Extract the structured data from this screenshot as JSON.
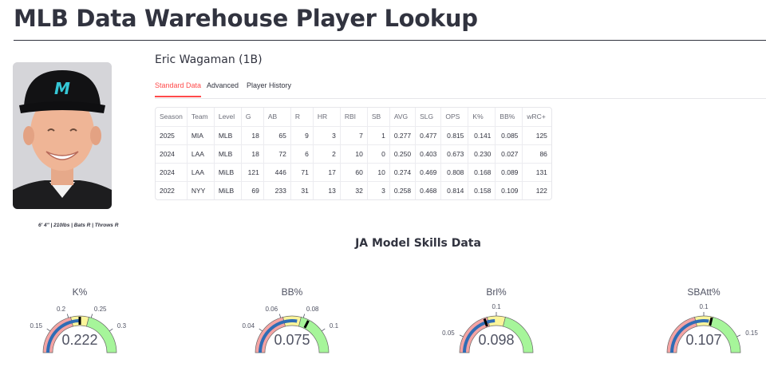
{
  "page": {
    "title": "MLB Data Warehouse Player Lookup"
  },
  "player": {
    "name": "Eric Wagaman (1B)",
    "bio": "6' 4\" | 210lbs | Bats R | Throws R",
    "photo_icon": "player-headshot"
  },
  "tabs": [
    {
      "label": "Standard Data",
      "active": true
    },
    {
      "label": "Advanced",
      "active": false
    },
    {
      "label": "Player History",
      "active": false
    }
  ],
  "table": {
    "columns": [
      "Season",
      "Team",
      "Level",
      "G",
      "AB",
      "R",
      "HR",
      "RBI",
      "SB",
      "AVG",
      "SLG",
      "OPS",
      "K%",
      "BB%",
      "wRC+"
    ],
    "rows": [
      [
        "2025",
        "MIA",
        "MLB",
        "18",
        "65",
        "9",
        "3",
        "7",
        "1",
        "0.277",
        "0.477",
        "0.815",
        "0.141",
        "0.085",
        "125"
      ],
      [
        "2024",
        "LAA",
        "MLB",
        "18",
        "72",
        "6",
        "2",
        "10",
        "0",
        "0.250",
        "0.403",
        "0.673",
        "0.230",
        "0.027",
        "86"
      ],
      [
        "2024",
        "LAA",
        "MiLB",
        "121",
        "446",
        "71",
        "17",
        "60",
        "10",
        "0.274",
        "0.469",
        "0.808",
        "0.168",
        "0.089",
        "131"
      ],
      [
        "2022",
        "NYY",
        "MiLB",
        "69",
        "233",
        "31",
        "13",
        "32",
        "3",
        "0.258",
        "0.468",
        "0.814",
        "0.158",
        "0.109",
        "122"
      ]
    ]
  },
  "skills": {
    "title": "JA Model Skills Data",
    "gauges": [
      {
        "label": "K%",
        "value": 0.222,
        "display": "0.222",
        "min": 0.1,
        "max": 0.35,
        "mark": 0.225,
        "ticks": [
          "0.15",
          "0.2",
          "0.25",
          "0.3"
        ]
      },
      {
        "label": "BB%",
        "value": 0.075,
        "display": "0.075",
        "min": 0.02,
        "max": 0.12,
        "mark": 0.085,
        "ticks": [
          "0.04",
          "0.06",
          "0.08",
          "0.1"
        ]
      },
      {
        "label": "Brl%",
        "value": 0.098,
        "display": "0.098",
        "min": 0.03,
        "max": 0.17,
        "mark": 0.085,
        "ticks": [
          "0.05",
          "0.1"
        ]
      },
      {
        "label": "SBAtt%",
        "value": 0.107,
        "display": "0.107",
        "min": 0.03,
        "max": 0.17,
        "mark": 0.11,
        "ticks": [
          "0.1",
          "0.15"
        ]
      }
    ]
  },
  "colors": {
    "accent": "#ff4b4b",
    "gauge_bar": "#2f6db5",
    "gauge_good": "#a6f59a",
    "gauge_mid": "#fbf59a",
    "gauge_bad": "#f4a3a3"
  }
}
